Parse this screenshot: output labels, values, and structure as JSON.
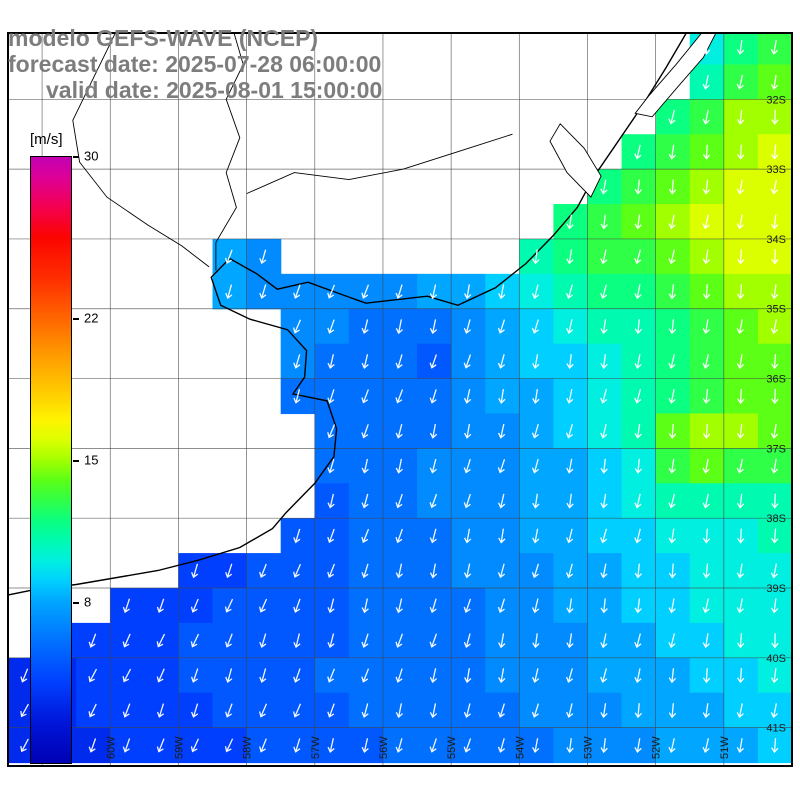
{
  "header": {
    "line1": "modelo GEFS-WAVE (NCEP)",
    "line2": "forecast date: 2025-07-28 06:00:00",
    "line3": "valid date: 2025-08-01 15:00:00",
    "color": "#7d7d7d"
  },
  "colorbar": {
    "unit_label": "[m/s]",
    "min": 0,
    "max": 30,
    "ticks": [
      30,
      22,
      15,
      8
    ],
    "stops": [
      {
        "v": 0,
        "c": "#0000b4"
      },
      {
        "v": 2,
        "c": "#0016d9"
      },
      {
        "v": 4,
        "c": "#013fff"
      },
      {
        "v": 6,
        "c": "#0170ff"
      },
      {
        "v": 8,
        "c": "#00a6ff"
      },
      {
        "v": 9,
        "c": "#00cfff"
      },
      {
        "v": 10,
        "c": "#00efe0"
      },
      {
        "v": 11,
        "c": "#00fbb0"
      },
      {
        "v": 12,
        "c": "#0bff80"
      },
      {
        "v": 13,
        "c": "#30ff48"
      },
      {
        "v": 14,
        "c": "#5cff16"
      },
      {
        "v": 15,
        "c": "#a2ff00"
      },
      {
        "v": 16,
        "c": "#dcff00"
      },
      {
        "v": 17,
        "c": "#fff300"
      },
      {
        "v": 18,
        "c": "#ffd500"
      },
      {
        "v": 20,
        "c": "#ffa000"
      },
      {
        "v": 22,
        "c": "#ff6600"
      },
      {
        "v": 24,
        "c": "#ff2d00"
      },
      {
        "v": 26,
        "c": "#fb0500"
      },
      {
        "v": 27.5,
        "c": "#f4004f"
      },
      {
        "v": 29,
        "c": "#dc0098"
      },
      {
        "v": 30,
        "c": "#c300b2"
      }
    ]
  },
  "map": {
    "lon_min": -61.5,
    "lon_max": -50.0,
    "lat_max": -31.05,
    "lat_min": -41.55,
    "grid_lons": [
      -61,
      -60,
      -59,
      -58,
      -57,
      -56,
      -55,
      -54,
      -53,
      -52,
      -51
    ],
    "grid_lats": [
      -32,
      -33,
      -34,
      -35,
      -36,
      -37,
      -38,
      -39,
      -40,
      -41
    ],
    "lat_labels": [
      [
        -32,
        "32S"
      ],
      [
        -33,
        "33S"
      ],
      [
        -34,
        "34S"
      ],
      [
        -35,
        "35S"
      ],
      [
        -36,
        "36S"
      ],
      [
        -37,
        "37S"
      ],
      [
        -38,
        "38S"
      ],
      [
        -39,
        "39S"
      ],
      [
        -40,
        "40S"
      ],
      [
        -41,
        "41S"
      ]
    ],
    "lon_labels": [
      [
        -60,
        "60W"
      ],
      [
        -59,
        "59W"
      ],
      [
        -58,
        "58W"
      ],
      [
        -57,
        "57W"
      ],
      [
        -56,
        "56W"
      ],
      [
        -55,
        "55W"
      ],
      [
        -54,
        "54W"
      ],
      [
        -53,
        "53W"
      ],
      [
        -52,
        "52W"
      ],
      [
        -51,
        "51W"
      ]
    ]
  },
  "field": {
    "units": "m/s",
    "lon0": -61.5,
    "lat0": -31.0,
    "dlon": 0.5,
    "dlat": 0.5,
    "values": [
      [
        null,
        null,
        null,
        null,
        null,
        null,
        null,
        null,
        null,
        null,
        null,
        null,
        null,
        null,
        null,
        null,
        null,
        null,
        null,
        null,
        10,
        12,
        13
      ],
      [
        null,
        null,
        null,
        null,
        null,
        null,
        null,
        null,
        null,
        null,
        null,
        null,
        null,
        null,
        null,
        null,
        null,
        null,
        null,
        null,
        11,
        13,
        14
      ],
      [
        null,
        null,
        null,
        null,
        null,
        null,
        null,
        null,
        null,
        null,
        null,
        null,
        null,
        null,
        null,
        null,
        null,
        null,
        null,
        12,
        13,
        15,
        15
      ],
      [
        null,
        null,
        null,
        null,
        null,
        null,
        null,
        null,
        null,
        null,
        null,
        null,
        null,
        null,
        null,
        null,
        null,
        null,
        12,
        13,
        14,
        15,
        16
      ],
      [
        null,
        null,
        null,
        null,
        null,
        null,
        null,
        null,
        null,
        null,
        null,
        null,
        null,
        null,
        null,
        null,
        null,
        12,
        13,
        14,
        15,
        16,
        16
      ],
      [
        null,
        null,
        null,
        null,
        null,
        null,
        null,
        null,
        null,
        null,
        null,
        null,
        null,
        null,
        null,
        null,
        12,
        13,
        14,
        15,
        16,
        16,
        16
      ],
      [
        null,
        null,
        null,
        null,
        null,
        null,
        8,
        7,
        null,
        null,
        null,
        null,
        null,
        null,
        null,
        11,
        12,
        13,
        13,
        14,
        15,
        16,
        16
      ],
      [
        null,
        null,
        null,
        null,
        null,
        null,
        8,
        7,
        7,
        7,
        7,
        7,
        8,
        8,
        9,
        10,
        11,
        12,
        12,
        13,
        14,
        15,
        15
      ],
      [
        null,
        null,
        null,
        null,
        null,
        null,
        null,
        null,
        7,
        7,
        6,
        6,
        6,
        7,
        8,
        9,
        10,
        11,
        11,
        12,
        13,
        14,
        15
      ],
      [
        null,
        null,
        null,
        null,
        null,
        null,
        null,
        null,
        7,
        6,
        6,
        6,
        5,
        7,
        8,
        9,
        9,
        10,
        11,
        12,
        13,
        14,
        14
      ],
      [
        null,
        null,
        null,
        null,
        null,
        null,
        null,
        null,
        6,
        6,
        6,
        6,
        6,
        7,
        8,
        8,
        9,
        10,
        11,
        12,
        13,
        14,
        14
      ],
      [
        null,
        null,
        null,
        null,
        null,
        null,
        null,
        null,
        null,
        6,
        6,
        6,
        6,
        7,
        7,
        8,
        9,
        10,
        11,
        14,
        15,
        15,
        14
      ],
      [
        null,
        null,
        null,
        null,
        null,
        null,
        null,
        null,
        null,
        6,
        6,
        6,
        7,
        7,
        7,
        8,
        8,
        9,
        10,
        13,
        14,
        13,
        13
      ],
      [
        null,
        null,
        null,
        null,
        null,
        null,
        null,
        null,
        null,
        5,
        6,
        6,
        7,
        7,
        7,
        8,
        8,
        9,
        10,
        11,
        11,
        11,
        11
      ],
      [
        null,
        null,
        null,
        null,
        null,
        null,
        null,
        null,
        5,
        5,
        6,
        6,
        6,
        7,
        7,
        8,
        8,
        9,
        9,
        10,
        10,
        10,
        11
      ],
      [
        null,
        null,
        null,
        null,
        null,
        4,
        4,
        5,
        5,
        5,
        6,
        6,
        6,
        7,
        7,
        7,
        8,
        8,
        9,
        9,
        10,
        10,
        10
      ],
      [
        null,
        null,
        null,
        4,
        4,
        4,
        5,
        5,
        5,
        5,
        6,
        6,
        6,
        6,
        7,
        7,
        8,
        8,
        9,
        9,
        10,
        10,
        10
      ],
      [
        null,
        4,
        4,
        4,
        4,
        5,
        5,
        5,
        5,
        5,
        6,
        6,
        6,
        6,
        7,
        7,
        7,
        8,
        8,
        9,
        9,
        10,
        10
      ],
      [
        3,
        3,
        4,
        4,
        4,
        5,
        5,
        5,
        5,
        6,
        6,
        6,
        6,
        6,
        7,
        7,
        7,
        8,
        8,
        8,
        9,
        9,
        10
      ],
      [
        3,
        3,
        4,
        4,
        4,
        4,
        5,
        5,
        5,
        5,
        6,
        6,
        6,
        6,
        6,
        7,
        7,
        7,
        8,
        8,
        8,
        9,
        9
      ],
      [
        3,
        3,
        3,
        4,
        4,
        4,
        4,
        5,
        5,
        5,
        5,
        6,
        6,
        6,
        6,
        6,
        7,
        7,
        7,
        8,
        8,
        8,
        9
      ]
    ]
  },
  "arrows": {
    "color": "#ffffff",
    "rot_east_deg": 6,
    "rot_west_deg": 26
  },
  "coast": {
    "color": "#000000",
    "mainline": [
      [
        -51.55,
        -31.05
      ],
      [
        -51.85,
        -31.55
      ],
      [
        -52.2,
        -32.1
      ],
      [
        -52.55,
        -32.6
      ],
      [
        -52.9,
        -33.1
      ],
      [
        -53.15,
        -33.55
      ],
      [
        -53.5,
        -33.95
      ],
      [
        -53.9,
        -34.35
      ],
      [
        -54.35,
        -34.7
      ],
      [
        -54.9,
        -34.95
      ],
      [
        -55.35,
        -34.82
      ],
      [
        -55.9,
        -34.88
      ],
      [
        -56.25,
        -34.92
      ],
      [
        -56.65,
        -34.78
      ],
      [
        -57.1,
        -34.62
      ],
      [
        -57.55,
        -34.72
      ],
      [
        -57.85,
        -34.5
      ],
      [
        -58.25,
        -34.28
      ],
      [
        -58.52,
        -34.55
      ],
      [
        -58.38,
        -34.95
      ],
      [
        -57.95,
        -35.15
      ],
      [
        -57.4,
        -35.3
      ],
      [
        -57.12,
        -35.6
      ],
      [
        -57.15,
        -35.98
      ],
      [
        -57.32,
        -36.22
      ],
      [
        -56.82,
        -36.32
      ],
      [
        -56.68,
        -36.72
      ],
      [
        -56.72,
        -37.12
      ],
      [
        -57.0,
        -37.5
      ],
      [
        -57.42,
        -37.92
      ],
      [
        -57.62,
        -38.15
      ],
      [
        -58.1,
        -38.42
      ],
      [
        -58.7,
        -38.6
      ],
      [
        -59.3,
        -38.75
      ],
      [
        -59.9,
        -38.85
      ],
      [
        -60.5,
        -38.95
      ],
      [
        -61.1,
        -39.02
      ],
      [
        -61.6,
        -39.12
      ]
    ],
    "rivers": [
      [
        [
          -58.2,
          -31.0
        ],
        [
          -58.05,
          -31.5
        ],
        [
          -58.3,
          -32.0
        ],
        [
          -58.1,
          -32.55
        ],
        [
          -58.3,
          -33.05
        ],
        [
          -58.15,
          -33.55
        ],
        [
          -58.45,
          -34.05
        ],
        [
          -58.45,
          -34.45
        ]
      ],
      [
        [
          -59.9,
          -31.0
        ],
        [
          -60.25,
          -31.7
        ],
        [
          -60.55,
          -32.3
        ],
        [
          -60.45,
          -32.9
        ],
        [
          -60.05,
          -33.4
        ],
        [
          -59.45,
          -33.8
        ],
        [
          -58.95,
          -34.1
        ],
        [
          -58.55,
          -34.4
        ]
      ],
      [
        [
          -54.1,
          -32.5
        ],
        [
          -54.9,
          -32.75
        ],
        [
          -55.7,
          -33.0
        ],
        [
          -56.5,
          -33.15
        ],
        [
          -57.3,
          -33.05
        ],
        [
          -58.0,
          -33.35
        ]
      ]
    ],
    "lagoons": [
      [
        [
          -53.4,
          -32.35
        ],
        [
          -53.05,
          -32.7
        ],
        [
          -52.8,
          -33.1
        ],
        [
          -52.95,
          -33.4
        ],
        [
          -53.3,
          -33.05
        ],
        [
          -53.55,
          -32.6
        ],
        [
          -53.4,
          -32.35
        ]
      ],
      [
        [
          -51.3,
          -31.02
        ],
        [
          -51.7,
          -31.5
        ],
        [
          -52.1,
          -31.95
        ],
        [
          -52.3,
          -32.2
        ],
        [
          -52.05,
          -32.25
        ],
        [
          -51.7,
          -31.85
        ],
        [
          -51.3,
          -31.4
        ],
        [
          -51.1,
          -31.02
        ]
      ]
    ]
  }
}
